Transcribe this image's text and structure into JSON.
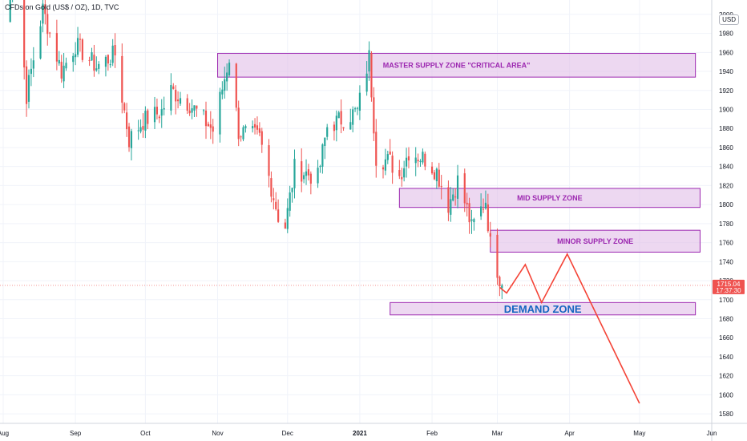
{
  "header": {
    "title": "CFDs on Gold (US$ / OZ), 1D, TVC",
    "currency": "USD"
  },
  "price_label": {
    "value": "1715.04",
    "countdown": "17:37:30"
  },
  "colors": {
    "up": "#26a69a",
    "down": "#ef5350",
    "zone_fill": "#e1bee7",
    "zone_stroke": "#9c27b0",
    "projection": "#f44336",
    "price_line": "#ef5350"
  },
  "zones": [
    {
      "id": "master",
      "label": "MASTER SUPPLY ZONE \"CRITICAL AREA\"",
      "start": "2020-11-01",
      "end": "2021-05-25",
      "low": 1934,
      "high": 1959
    },
    {
      "id": "mid",
      "label": "MID SUPPLY ZONE",
      "start": "2021-01-18",
      "end": "2021-05-27",
      "low": 1797,
      "high": 1817
    },
    {
      "id": "minor",
      "label": "MINOR SUPPLY ZONE",
      "start": "2021-02-26",
      "end": "2021-05-27",
      "low": 1750,
      "high": 1773
    },
    {
      "id": "demand",
      "label": "DEMAND ZONE",
      "start": "2021-01-14",
      "end": "2021-05-25",
      "low": 1684,
      "high": 1697
    }
  ],
  "chart_data": {
    "type": "candlestick",
    "title": "CFDs on Gold (US$ / OZ), 1D, TVC",
    "xlabel": "",
    "ylabel": "",
    "x_range": [
      "2020-08-01",
      "2021-06-01"
    ],
    "ylim": [
      1570,
      2010
    ],
    "y_ticks": [
      1580,
      1600,
      1620,
      1640,
      1660,
      1680,
      1700,
      1720,
      1740,
      1760,
      1780,
      1800,
      1820,
      1840,
      1860,
      1880,
      1900,
      1920,
      1940,
      1960,
      1980,
      2000
    ],
    "x_ticks": [
      "Aug",
      "Sep",
      "Oct",
      "Nov",
      "Dec",
      "2021",
      "Feb",
      "Mar",
      "Apr",
      "May",
      "Jun"
    ],
    "grid": true,
    "current_price": 1715.04,
    "anchors": [
      {
        "date": "2020-08-01",
        "close": 1950
      },
      {
        "date": "2020-08-06",
        "close": 2060
      },
      {
        "date": "2020-08-11",
        "close": 1915
      },
      {
        "date": "2020-08-18",
        "close": 2005
      },
      {
        "date": "2020-08-26",
        "close": 1940
      },
      {
        "date": "2020-09-01",
        "close": 1968
      },
      {
        "date": "2020-09-10",
        "close": 1945
      },
      {
        "date": "2020-09-18",
        "close": 1958
      },
      {
        "date": "2020-09-24",
        "close": 1868
      },
      {
        "date": "2020-09-30",
        "close": 1888
      },
      {
        "date": "2020-10-08",
        "close": 1898
      },
      {
        "date": "2020-10-12",
        "close": 1920
      },
      {
        "date": "2020-10-20",
        "close": 1906
      },
      {
        "date": "2020-10-30",
        "close": 1878
      },
      {
        "date": "2020-11-06",
        "close": 1955
      },
      {
        "date": "2020-11-10",
        "close": 1877
      },
      {
        "date": "2020-11-19",
        "close": 1870
      },
      {
        "date": "2020-11-27",
        "close": 1788
      },
      {
        "date": "2020-11-30",
        "close": 1777
      },
      {
        "date": "2020-12-04",
        "close": 1838
      },
      {
        "date": "2020-12-14",
        "close": 1828
      },
      {
        "date": "2020-12-18",
        "close": 1882
      },
      {
        "date": "2020-12-31",
        "close": 1898
      },
      {
        "date": "2021-01-05",
        "close": 1955
      },
      {
        "date": "2021-01-08",
        "close": 1850
      },
      {
        "date": "2021-01-14",
        "close": 1845
      },
      {
        "date": "2021-01-18",
        "close": 1830
      },
      {
        "date": "2021-01-22",
        "close": 1856
      },
      {
        "date": "2021-01-29",
        "close": 1848
      },
      {
        "date": "2021-02-03",
        "close": 1835
      },
      {
        "date": "2021-02-08",
        "close": 1800
      },
      {
        "date": "2021-02-12",
        "close": 1825
      },
      {
        "date": "2021-02-16",
        "close": 1795
      },
      {
        "date": "2021-02-18",
        "close": 1775
      },
      {
        "date": "2021-02-24",
        "close": 1805
      },
      {
        "date": "2021-02-26",
        "close": 1758
      },
      {
        "date": "2021-03-03",
        "close": 1715
      }
    ],
    "projection": [
      {
        "date": "2021-03-02",
        "price": 1713
      },
      {
        "date": "2021-03-05",
        "price": 1707
      },
      {
        "date": "2021-03-13",
        "price": 1737
      },
      {
        "date": "2021-03-20",
        "price": 1697
      },
      {
        "date": "2021-03-31",
        "price": 1748
      },
      {
        "date": "2021-05-01",
        "price": 1591
      }
    ]
  }
}
